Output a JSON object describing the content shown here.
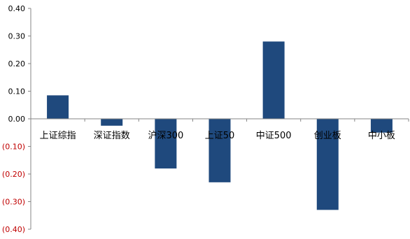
{
  "chart_data": {
    "type": "bar",
    "categories": [
      "上证综指",
      "深证指数",
      "沪深300",
      "上证50",
      "中证500",
      "创业板",
      "中小板"
    ],
    "values": [
      0.085,
      -0.025,
      -0.18,
      -0.23,
      0.28,
      -0.33,
      -0.05
    ],
    "ylim": [
      -0.4,
      0.4
    ],
    "yticks": [
      {
        "value": 0.4,
        "label": "0.40"
      },
      {
        "value": 0.3,
        "label": "0.30"
      },
      {
        "value": 0.2,
        "label": "0.20"
      },
      {
        "value": 0.1,
        "label": "0.10"
      },
      {
        "value": 0.0,
        "label": "0.00"
      },
      {
        "value": -0.1,
        "label": "(0.10)"
      },
      {
        "value": -0.2,
        "label": "(0.20)"
      },
      {
        "value": -0.3,
        "label": "(0.30)"
      },
      {
        "value": -0.4,
        "label": "(0.40)"
      }
    ],
    "grid": false,
    "legend": "none",
    "colors": {
      "bar": "#1F497D",
      "positive_tick": "#000000",
      "negative_tick": "#C00000",
      "axis": "#868686"
    }
  }
}
